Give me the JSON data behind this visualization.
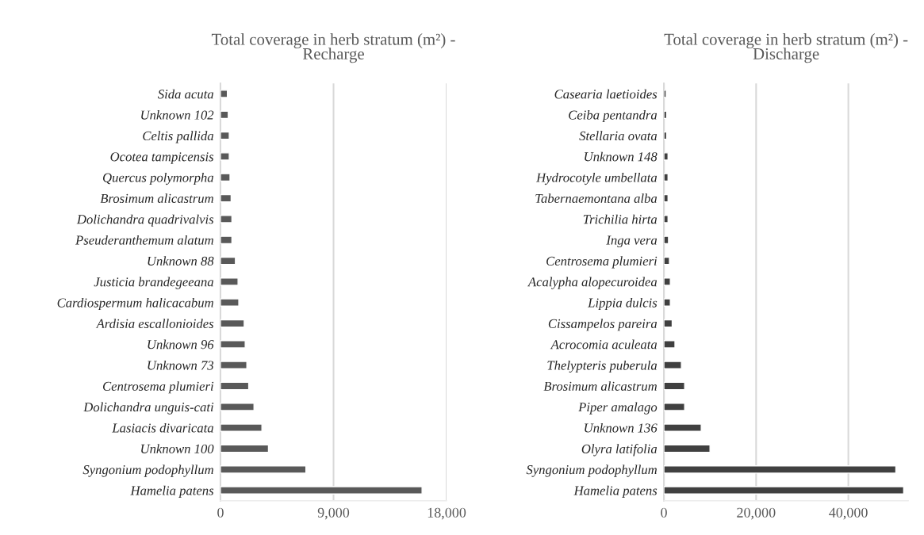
{
  "chart_data": [
    {
      "type": "bar",
      "orientation": "horizontal",
      "title": "Total coverage in herb stratum (m²) -\nRecharge",
      "categories": [
        "Sida acuta",
        "Unknown 102",
        "Celtis pallida",
        "Ocotea tampicensis",
        "Quercus polymorpha",
        "Brosimum alicastrum",
        "Dolichandra quadrivalvis",
        "Pseuderanthemum alatum",
        "Unknown 88",
        "Justicia brandegeeana",
        "Cardiospermum halicacabum",
        "Ardisia escallonioides",
        "Unknown 96",
        "Unknown 73",
        "Centrosema plumieri",
        "Dolichandra unguis-cati",
        "Lasiacis divaricata",
        "Unknown 100",
        "Syngonium podophyllum",
        "Hamelia patens"
      ],
      "values": [
        550,
        620,
        700,
        700,
        760,
        850,
        910,
        910,
        1190,
        1400,
        1460,
        1890,
        1970,
        2100,
        2250,
        2670,
        3300,
        3820,
        6800,
        16050
      ],
      "color": "#595959",
      "xlim": [
        0,
        18000
      ],
      "xticks": [
        0,
        {
          "value": 9000,
          "label": "9,000"
        },
        {
          "value": 18000,
          "label": "18,000"
        }
      ],
      "grid": "x"
    },
    {
      "type": "bar",
      "orientation": "horizontal",
      "title": "Total coverage in herb stratum (m²) -\nDischarge",
      "categories": [
        "Casearia laetioides",
        "Ceiba pentandra",
        "Stellaria ovata",
        "Unknown 148",
        "Hydrocotyle umbellata",
        "Tabernaemontana alba",
        "Trichilia hirta",
        "Inga vera",
        "Centrosema plumieri",
        "Acalypha alopecuroidea",
        "Lippia dulcis",
        "Cissampelos pareira",
        "Acrocomia aculeata",
        "Thelypteris puberula",
        "Brosimum alicastrum",
        "Piper amalago",
        "Unknown 136",
        "Olyra latifolia",
        "Syngonium podophyllum",
        "Hamelia patens"
      ],
      "values": [
        500,
        600,
        600,
        900,
        900,
        900,
        900,
        1000,
        1200,
        1400,
        1400,
        1800,
        2400,
        3800,
        4500,
        4500,
        8100,
        10000,
        50300,
        52000
      ],
      "color": "#404040",
      "xlim": [
        0,
        53000
      ],
      "xticks": [
        0,
        {
          "value": 20000,
          "label": "20,000"
        },
        {
          "value": 40000,
          "label": "40,000"
        }
      ],
      "grid": "x"
    }
  ]
}
